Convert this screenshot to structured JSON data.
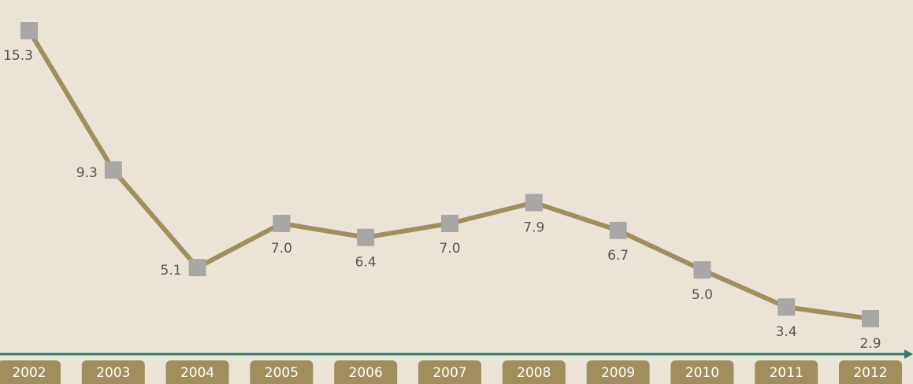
{
  "chart_data": {
    "type": "line",
    "categories": [
      "2002",
      "2003",
      "2004",
      "2005",
      "2006",
      "2007",
      "2008",
      "2009",
      "2010",
      "2011",
      "2012"
    ],
    "values": [
      15.3,
      9.3,
      5.1,
      7.0,
      6.4,
      7.0,
      7.9,
      6.7,
      5.0,
      3.4,
      2.9
    ],
    "value_labels": [
      "15.3",
      "9.3",
      "5.1",
      "7.0",
      "6.4",
      "7.0",
      "7.9",
      "6.7",
      "5.0",
      "3.4",
      "2.9"
    ],
    "color": "#a08e5c",
    "marker_color": "#a8a7a6",
    "axis_color": "#2e7f6e"
  }
}
